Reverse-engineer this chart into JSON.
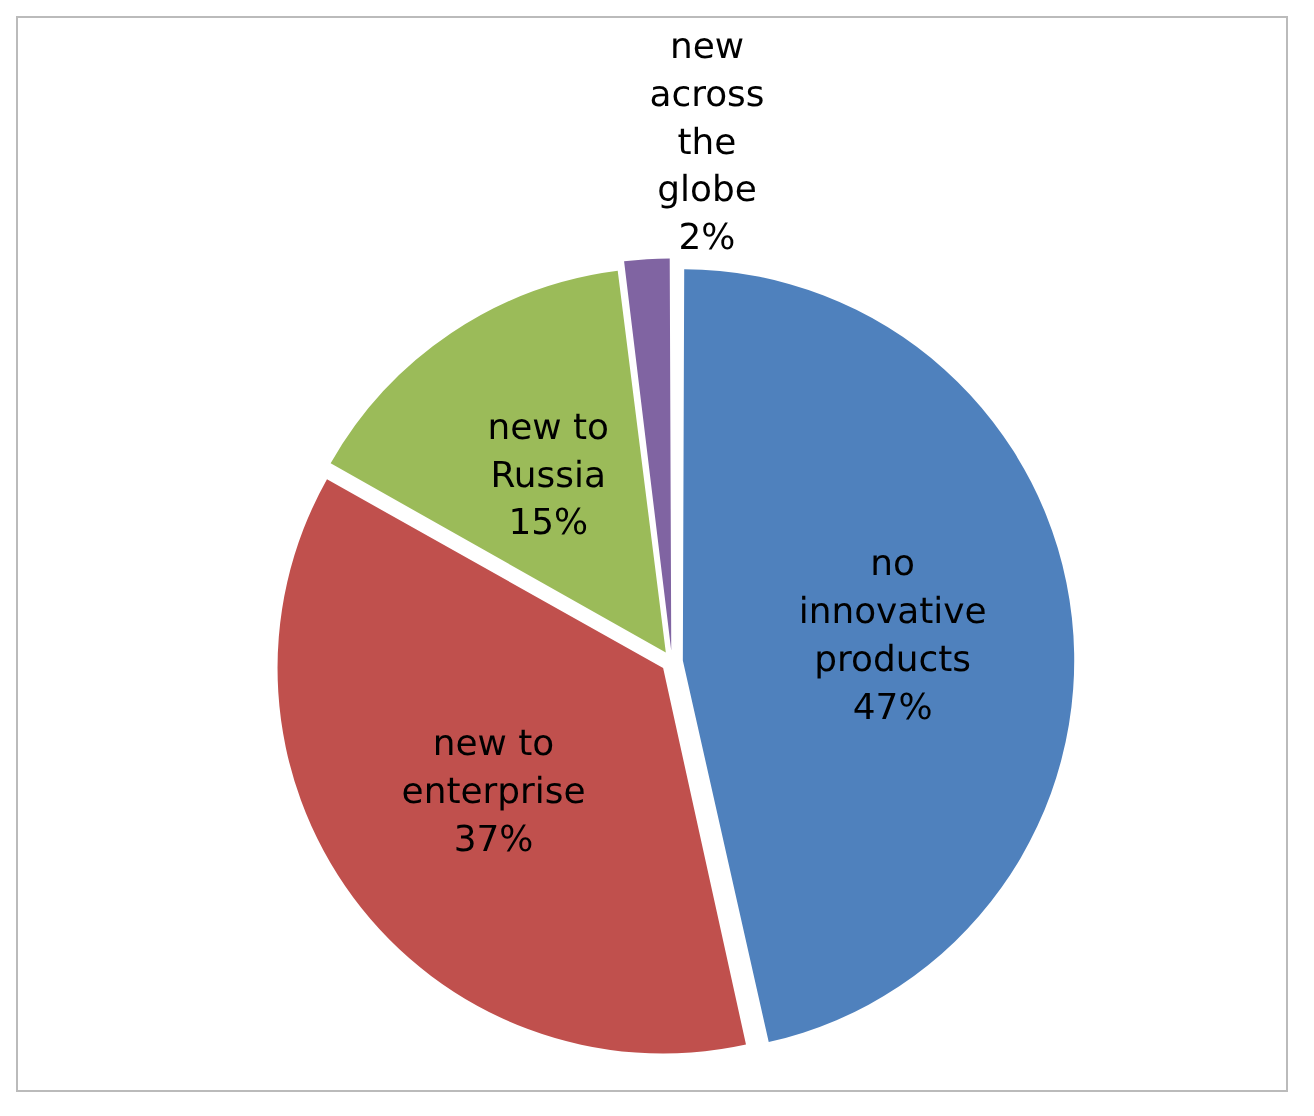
{
  "chart_data": {
    "type": "pie",
    "categories": [
      "no innovative products",
      "new to enterprise",
      "new to Russia",
      "new across the globe"
    ],
    "values": [
      47,
      37,
      15,
      2
    ],
    "colors": [
      "#4f81bd",
      "#c0504d",
      "#9bbb59",
      "#8064a2"
    ],
    "value_labels": [
      "47%",
      "37%",
      "15%",
      "2%"
    ],
    "legend": false
  }
}
